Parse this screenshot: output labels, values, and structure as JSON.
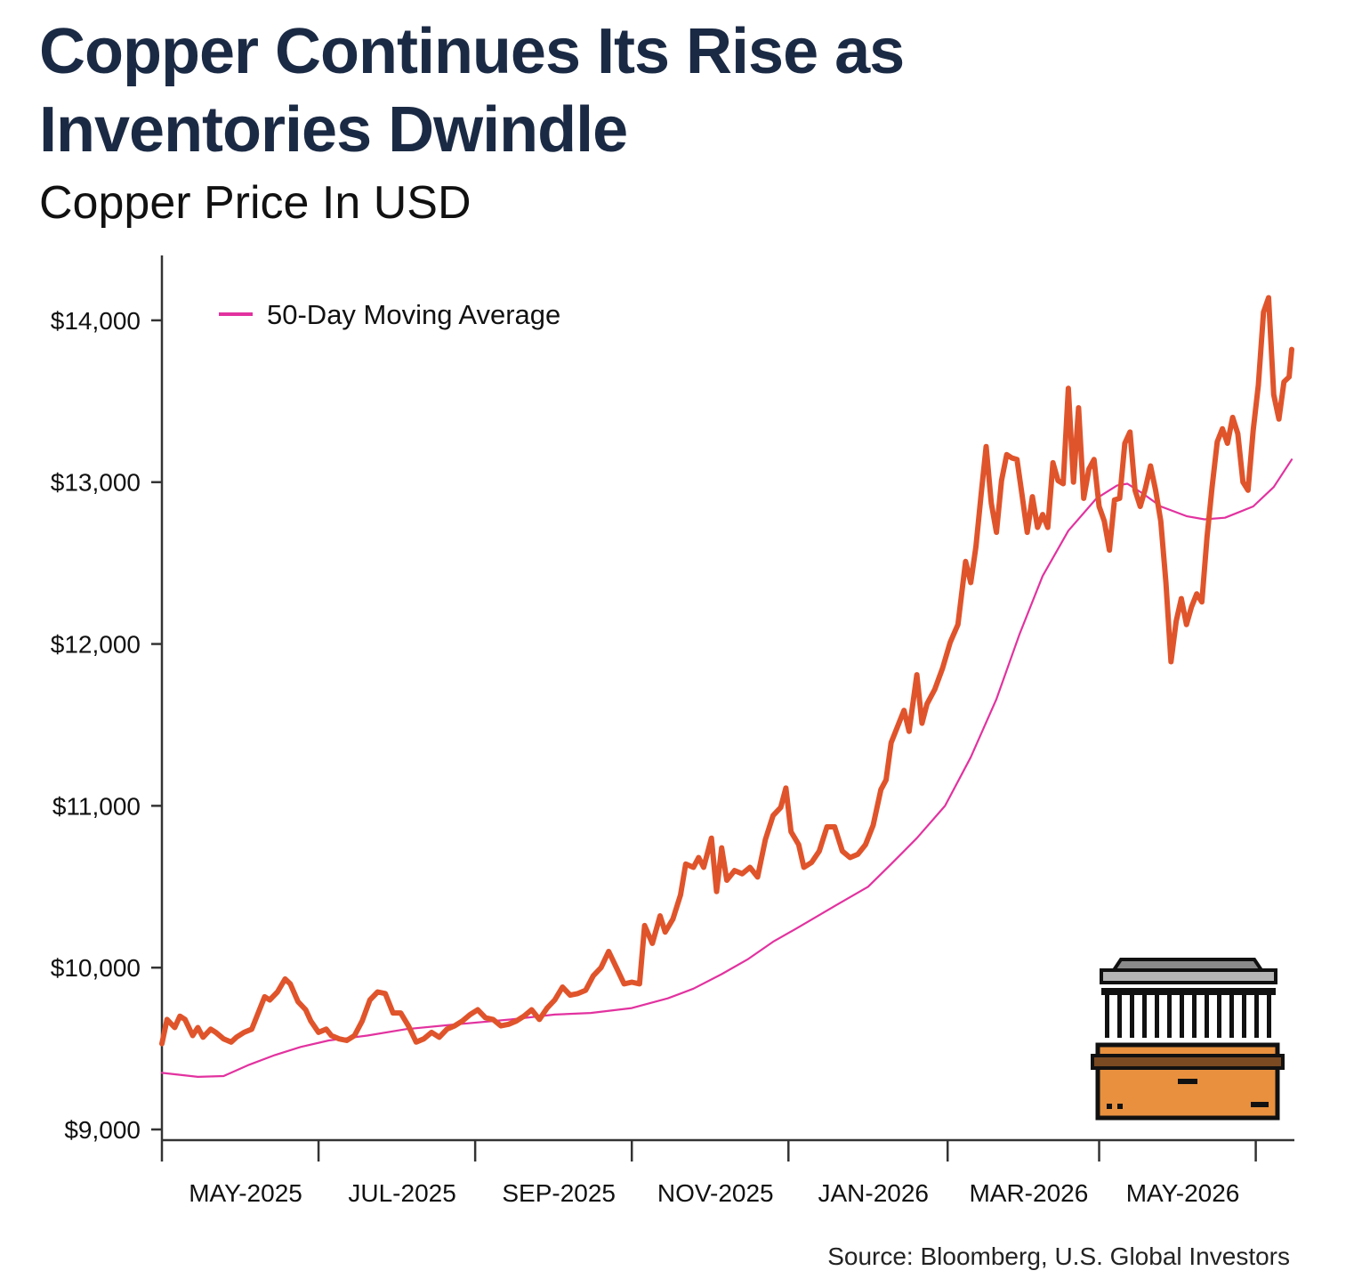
{
  "title": "Copper Continues Its Rise as Inventories Dwindle",
  "subtitle": "Copper Price In USD",
  "source": "Source: Bloomberg, U.S. Global Investors",
  "colors": {
    "price": "#e0542b",
    "moving_average": "#e2329f",
    "axis": "#333333",
    "title": "#1b2a44",
    "warehouse_fill": "#e8903e"
  },
  "chart_data": {
    "type": "line",
    "x_axis": {
      "type": "date",
      "min": "2025-04-01",
      "max": "2026-06-15",
      "ticks": [
        {
          "date": "2025-04-01",
          "label": ""
        },
        {
          "date": "2025-06-01",
          "label": "MAY-2025"
        },
        {
          "date": "2025-08-01",
          "label": "JUL-2025"
        },
        {
          "date": "2025-10-01",
          "label": "SEP-2025"
        },
        {
          "date": "2025-12-01",
          "label": "NOV-2025"
        },
        {
          "date": "2026-02-01",
          "label": "JAN-2026"
        },
        {
          "date": "2026-04-01",
          "label": "MAR-2026"
        },
        {
          "date": "2026-06-01",
          "label": "MAY-2026"
        }
      ]
    },
    "y_axis": {
      "min": 9000,
      "max": 14500,
      "ticks": [
        {
          "value": 9000,
          "label": "$9,000"
        },
        {
          "value": 10000,
          "label": "$10,000"
        },
        {
          "value": 11000,
          "label": "$11,000"
        },
        {
          "value": 12000,
          "label": "$12,000"
        },
        {
          "value": 13000,
          "label": "$13,000"
        },
        {
          "value": 14000,
          "label": "$14,000"
        }
      ]
    },
    "grid": false,
    "legend_position": "top-left",
    "series": [
      {
        "key": "price",
        "color": "#e0542b",
        "points": [
          [
            "2025-04-01",
            9530
          ],
          [
            "2025-04-03",
            9680
          ],
          [
            "2025-04-06",
            9630
          ],
          [
            "2025-04-08",
            9700
          ],
          [
            "2025-04-10",
            9680
          ],
          [
            "2025-04-13",
            9580
          ],
          [
            "2025-04-15",
            9630
          ],
          [
            "2025-04-17",
            9570
          ],
          [
            "2025-04-20",
            9620
          ],
          [
            "2025-04-22",
            9600
          ],
          [
            "2025-04-25",
            9560
          ],
          [
            "2025-04-28",
            9540
          ],
          [
            "2025-04-30",
            9570
          ],
          [
            "2025-05-03",
            9600
          ],
          [
            "2025-05-06",
            9620
          ],
          [
            "2025-05-08",
            9700
          ],
          [
            "2025-05-11",
            9820
          ],
          [
            "2025-05-13",
            9800
          ],
          [
            "2025-05-16",
            9850
          ],
          [
            "2025-05-19",
            9930
          ],
          [
            "2025-05-21",
            9900
          ],
          [
            "2025-05-24",
            9790
          ],
          [
            "2025-05-27",
            9740
          ],
          [
            "2025-05-29",
            9670
          ],
          [
            "2025-06-01",
            9600
          ],
          [
            "2025-06-04",
            9620
          ],
          [
            "2025-06-06",
            9580
          ],
          [
            "2025-06-09",
            9560
          ],
          [
            "2025-06-12",
            9550
          ],
          [
            "2025-06-15",
            9580
          ],
          [
            "2025-06-18",
            9670
          ],
          [
            "2025-06-21",
            9800
          ],
          [
            "2025-06-24",
            9850
          ],
          [
            "2025-06-27",
            9840
          ],
          [
            "2025-06-30",
            9720
          ],
          [
            "2025-07-03",
            9720
          ],
          [
            "2025-07-06",
            9640
          ],
          [
            "2025-07-09",
            9540
          ],
          [
            "2025-07-12",
            9560
          ],
          [
            "2025-07-15",
            9600
          ],
          [
            "2025-07-18",
            9570
          ],
          [
            "2025-07-21",
            9620
          ],
          [
            "2025-07-24",
            9640
          ],
          [
            "2025-07-27",
            9670
          ],
          [
            "2025-07-30",
            9710
          ],
          [
            "2025-08-02",
            9740
          ],
          [
            "2025-08-05",
            9690
          ],
          [
            "2025-08-08",
            9680
          ],
          [
            "2025-08-11",
            9640
          ],
          [
            "2025-08-14",
            9650
          ],
          [
            "2025-08-17",
            9670
          ],
          [
            "2025-08-20",
            9700
          ],
          [
            "2025-08-23",
            9740
          ],
          [
            "2025-08-26",
            9680
          ],
          [
            "2025-08-29",
            9750
          ],
          [
            "2025-09-01",
            9800
          ],
          [
            "2025-09-04",
            9880
          ],
          [
            "2025-09-07",
            9830
          ],
          [
            "2025-09-10",
            9840
          ],
          [
            "2025-09-13",
            9860
          ],
          [
            "2025-09-16",
            9950
          ],
          [
            "2025-09-19",
            10000
          ],
          [
            "2025-09-22",
            10100
          ],
          [
            "2025-09-25",
            10000
          ],
          [
            "2025-09-28",
            9900
          ],
          [
            "2025-10-01",
            9910
          ],
          [
            "2025-10-04",
            9900
          ],
          [
            "2025-10-06",
            10260
          ],
          [
            "2025-10-09",
            10150
          ],
          [
            "2025-10-12",
            10320
          ],
          [
            "2025-10-14",
            10220
          ],
          [
            "2025-10-17",
            10300
          ],
          [
            "2025-10-20",
            10450
          ],
          [
            "2025-10-22",
            10640
          ],
          [
            "2025-10-25",
            10620
          ],
          [
            "2025-10-27",
            10680
          ],
          [
            "2025-10-29",
            10620
          ],
          [
            "2025-11-01",
            10800
          ],
          [
            "2025-11-03",
            10470
          ],
          [
            "2025-11-05",
            10740
          ],
          [
            "2025-11-07",
            10540
          ],
          [
            "2025-11-10",
            10600
          ],
          [
            "2025-11-13",
            10580
          ],
          [
            "2025-11-16",
            10620
          ],
          [
            "2025-11-19",
            10560
          ],
          [
            "2025-11-22",
            10790
          ],
          [
            "2025-11-25",
            10940
          ],
          [
            "2025-11-28",
            10990
          ],
          [
            "2025-11-30",
            11110
          ],
          [
            "2025-12-02",
            10840
          ],
          [
            "2025-12-05",
            10760
          ],
          [
            "2025-12-07",
            10620
          ],
          [
            "2025-12-10",
            10650
          ],
          [
            "2025-12-13",
            10720
          ],
          [
            "2025-12-16",
            10870
          ],
          [
            "2025-12-19",
            10870
          ],
          [
            "2025-12-22",
            10720
          ],
          [
            "2025-12-25",
            10680
          ],
          [
            "2025-12-28",
            10700
          ],
          [
            "2025-12-31",
            10760
          ],
          [
            "2026-01-03",
            10880
          ],
          [
            "2026-01-06",
            11100
          ],
          [
            "2026-01-08",
            11160
          ],
          [
            "2026-01-10",
            11390
          ],
          [
            "2026-01-13",
            11510
          ],
          [
            "2026-01-15",
            11590
          ],
          [
            "2026-01-17",
            11460
          ],
          [
            "2026-01-20",
            11810
          ],
          [
            "2026-01-22",
            11510
          ],
          [
            "2026-01-24",
            11630
          ],
          [
            "2026-01-27",
            11720
          ],
          [
            "2026-01-30",
            11850
          ],
          [
            "2026-02-02",
            12010
          ],
          [
            "2026-02-05",
            12120
          ],
          [
            "2026-02-08",
            12510
          ],
          [
            "2026-02-10",
            12380
          ],
          [
            "2026-02-12",
            12600
          ],
          [
            "2026-02-14",
            12920
          ],
          [
            "2026-02-16",
            13220
          ],
          [
            "2026-02-18",
            12870
          ],
          [
            "2026-02-20",
            12690
          ],
          [
            "2026-02-22",
            13010
          ],
          [
            "2026-02-24",
            13170
          ],
          [
            "2026-02-26",
            13150
          ],
          [
            "2026-02-28",
            13140
          ],
          [
            "2026-03-02",
            12920
          ],
          [
            "2026-03-04",
            12690
          ],
          [
            "2026-03-06",
            12910
          ],
          [
            "2026-03-08",
            12720
          ],
          [
            "2026-03-10",
            12800
          ],
          [
            "2026-03-12",
            12720
          ],
          [
            "2026-03-14",
            13120
          ],
          [
            "2026-03-16",
            13010
          ],
          [
            "2026-03-18",
            12990
          ],
          [
            "2026-03-20",
            13580
          ],
          [
            "2026-03-22",
            13000
          ],
          [
            "2026-03-24",
            13460
          ],
          [
            "2026-03-26",
            12900
          ],
          [
            "2026-03-28",
            13080
          ],
          [
            "2026-03-30",
            13140
          ],
          [
            "2026-04-01",
            12850
          ],
          [
            "2026-04-03",
            12760
          ],
          [
            "2026-04-05",
            12580
          ],
          [
            "2026-04-07",
            12890
          ],
          [
            "2026-04-09",
            12900
          ],
          [
            "2026-04-11",
            13240
          ],
          [
            "2026-04-13",
            13310
          ],
          [
            "2026-04-15",
            12950
          ],
          [
            "2026-04-17",
            12850
          ],
          [
            "2026-04-19",
            12960
          ],
          [
            "2026-04-21",
            13100
          ],
          [
            "2026-04-23",
            12950
          ],
          [
            "2026-04-25",
            12760
          ],
          [
            "2026-04-27",
            12380
          ],
          [
            "2026-04-29",
            11890
          ],
          [
            "2026-05-01",
            12140
          ],
          [
            "2026-05-03",
            12280
          ],
          [
            "2026-05-05",
            12120
          ],
          [
            "2026-05-07",
            12230
          ],
          [
            "2026-05-09",
            12310
          ],
          [
            "2026-05-11",
            12260
          ],
          [
            "2026-05-13",
            12660
          ],
          [
            "2026-05-15",
            12970
          ],
          [
            "2026-05-17",
            13250
          ],
          [
            "2026-05-19",
            13330
          ],
          [
            "2026-05-21",
            13240
          ],
          [
            "2026-05-23",
            13400
          ],
          [
            "2026-05-25",
            13300
          ],
          [
            "2026-05-27",
            13000
          ],
          [
            "2026-05-29",
            12950
          ],
          [
            "2026-05-31",
            13320
          ],
          [
            "2026-06-02",
            13600
          ],
          [
            "2026-06-04",
            14050
          ],
          [
            "2026-06-06",
            14140
          ],
          [
            "2026-06-08",
            13540
          ],
          [
            "2026-06-10",
            13390
          ],
          [
            "2026-06-12",
            13620
          ],
          [
            "2026-06-14",
            13650
          ],
          [
            "2026-06-15",
            13820
          ]
        ]
      },
      {
        "key": "moving_average",
        "name": "50-Day Moving Average",
        "color": "#e2329f",
        "points": [
          [
            "2025-04-01",
            9350
          ],
          [
            "2025-04-15",
            9325
          ],
          [
            "2025-04-25",
            9330
          ],
          [
            "2025-05-05",
            9400
          ],
          [
            "2025-05-15",
            9460
          ],
          [
            "2025-05-25",
            9510
          ],
          [
            "2025-06-05",
            9550
          ],
          [
            "2025-06-20",
            9580
          ],
          [
            "2025-07-05",
            9620
          ],
          [
            "2025-07-25",
            9650
          ],
          [
            "2025-08-15",
            9680
          ],
          [
            "2025-09-01",
            9710
          ],
          [
            "2025-09-15",
            9720
          ],
          [
            "2025-10-01",
            9750
          ],
          [
            "2025-10-15",
            9810
          ],
          [
            "2025-10-25",
            9870
          ],
          [
            "2025-11-05",
            9960
          ],
          [
            "2025-11-15",
            10050
          ],
          [
            "2025-11-25",
            10160
          ],
          [
            "2025-12-05",
            10250
          ],
          [
            "2025-12-20",
            10390
          ],
          [
            "2026-01-01",
            10500
          ],
          [
            "2026-01-10",
            10640
          ],
          [
            "2026-01-20",
            10800
          ],
          [
            "2026-01-31",
            11000
          ],
          [
            "2026-02-10",
            11300
          ],
          [
            "2026-02-20",
            11660
          ],
          [
            "2026-03-01",
            12060
          ],
          [
            "2026-03-10",
            12420
          ],
          [
            "2026-03-20",
            12700
          ],
          [
            "2026-03-31",
            12900
          ],
          [
            "2026-04-08",
            12980
          ],
          [
            "2026-04-12",
            12990
          ],
          [
            "2026-04-18",
            12930
          ],
          [
            "2026-04-25",
            12850
          ],
          [
            "2026-05-05",
            12790
          ],
          [
            "2026-05-12",
            12770
          ],
          [
            "2026-05-20",
            12780
          ],
          [
            "2026-05-31",
            12850
          ],
          [
            "2026-06-08",
            12970
          ],
          [
            "2026-06-15",
            13140
          ]
        ]
      }
    ]
  }
}
